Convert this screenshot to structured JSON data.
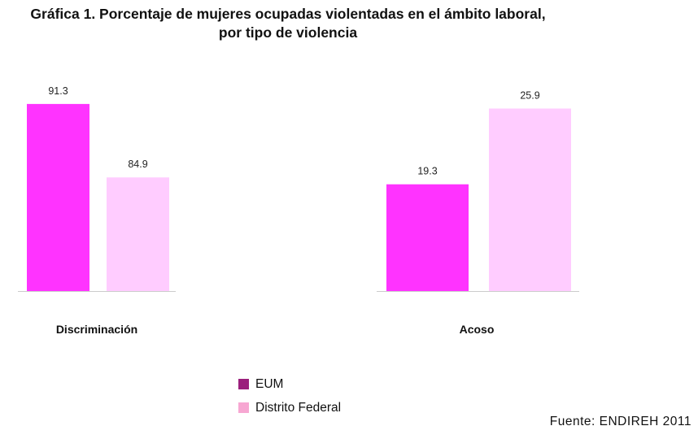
{
  "title": {
    "line1": "Gráfica 1. Porcentaje de mujeres ocupadas violentadas en el ámbito laboral,",
    "line2": "por tipo de violencia"
  },
  "source": "Fuente: ENDIREH 2011",
  "colors": {
    "EUM": "#ff33ff",
    "Distrito Federal": "#ffccff",
    "legend_EUM": "#9b1f7c",
    "legend_DF": "#f7a7d2",
    "axis": "#cccccc"
  },
  "chart_data": [
    {
      "type": "bar",
      "categories": [
        "Discriminación"
      ],
      "series": [
        {
          "name": "EUM",
          "values": [
            91.3
          ]
        },
        {
          "name": "Distrito Federal",
          "values": [
            84.9
          ]
        }
      ],
      "ylim": [
        75,
        92
      ],
      "legend": "bottom"
    },
    {
      "type": "bar",
      "categories": [
        "Acoso"
      ],
      "series": [
        {
          "name": "EUM",
          "values": [
            19.3
          ]
        },
        {
          "name": "Distrito Federal",
          "values": [
            25.9
          ]
        }
      ],
      "ylim": [
        10,
        27
      ],
      "legend": "bottom"
    }
  ],
  "legend": [
    {
      "label": "EUM"
    },
    {
      "label": "Distrito Federal"
    }
  ]
}
